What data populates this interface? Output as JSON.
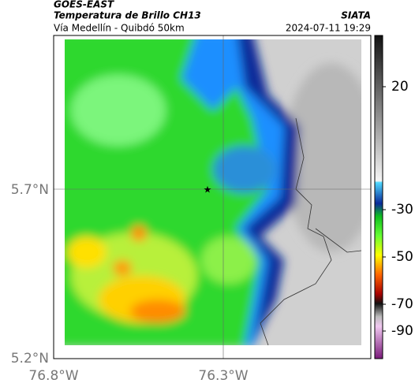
{
  "header": {
    "title": "GOES-EAST",
    "subtitle": "Temperatura de Brillo CH13",
    "region": "Vía Medellín - Quibdó 50km",
    "source": "SIATA",
    "timestamp": "2024-07-11 19:29"
  },
  "map": {
    "y_ticks": [
      "5.7°N",
      "5.2°N"
    ],
    "x_ticks": [
      "76.8°W",
      "76.3°W"
    ]
  },
  "colorbar": {
    "ticks": [
      20,
      -30,
      -50,
      -70,
      -90
    ]
  }
}
